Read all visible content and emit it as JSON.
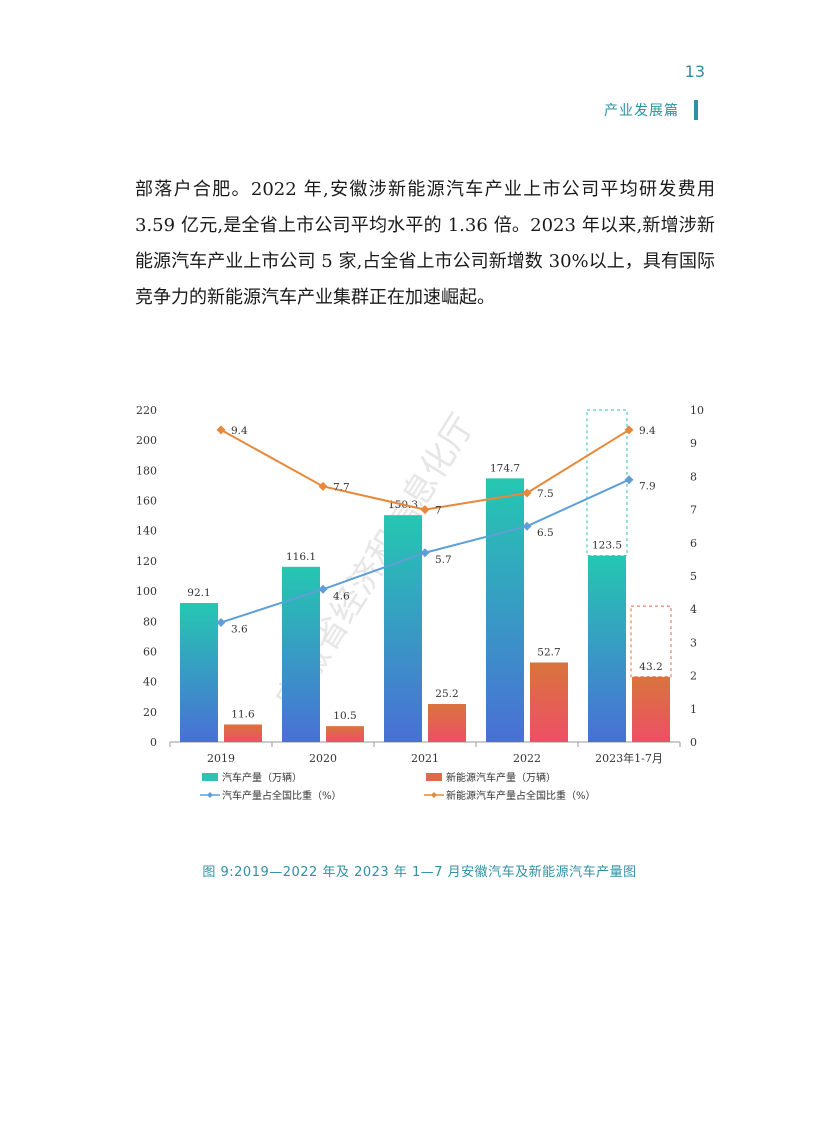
{
  "header": {
    "page_number": "13",
    "section": "产业发展篇"
  },
  "body_text": "部落户合肥。2022 年,安徽涉新能源汽车产业上市公司平均研发费用 3.59 亿元,是全省上市公司平均水平的 1.36 倍。2023 年以来,新增涉新能源汽车产业上市公司 5 家,占全省上市公司新增数 30%以上，具有国际竞争力的新能源汽车产业集群正在加速崛起。",
  "watermark": "安徽省经济和信息化厅",
  "caption": "图 9:2019—2022 年及 2023 年 1—7 月安徽汽车及新能源汽车产量图",
  "chart_data": {
    "type": "bar",
    "categories": [
      "2019",
      "2020",
      "2021",
      "2022",
      "2023年1-7月"
    ],
    "series": [
      {
        "name": "汽车产量（万辆）",
        "type": "bar",
        "axis": "left",
        "color": "#2ec2b3",
        "values": [
          92.1,
          116.1,
          150.3,
          174.7,
          123.5
        ],
        "labels": [
          "92.1",
          "116.1",
          "150.3",
          "174.7",
          "123.5"
        ]
      },
      {
        "name": "新能源汽车产量（万辆）",
        "type": "bar",
        "axis": "left",
        "color": "#e2674f",
        "values": [
          11.6,
          10.5,
          25.2,
          52.7,
          43.2
        ],
        "labels": [
          "11.6",
          "10.5",
          "25.2",
          "52.7",
          "43.2"
        ]
      },
      {
        "name": "汽车产量占全国比重（%）",
        "type": "line",
        "axis": "right",
        "color": "#5f9fd8",
        "values": [
          3.6,
          4.6,
          5.7,
          6.5,
          7.9
        ],
        "labels": [
          "3.6",
          "4.6",
          "5.7",
          "6.5",
          "7.9"
        ]
      },
      {
        "name": "新能源汽车产量占全国比重（%）",
        "type": "line",
        "axis": "right",
        "color": "#e8883a",
        "values": [
          9.4,
          7.7,
          7,
          7.5,
          9.4
        ],
        "labels": [
          "9.4",
          "7.7",
          "7",
          "7.5",
          "9.4"
        ]
      }
    ],
    "y_left": {
      "min": 0,
      "max": 220,
      "ticks": [
        "0",
        "20",
        "40",
        "60",
        "80",
        "100",
        "120",
        "140",
        "160",
        "180",
        "200",
        "220"
      ]
    },
    "y_right": {
      "min": 0,
      "max": 10,
      "ticks": [
        "0",
        "1",
        "2",
        "3",
        "4",
        "5",
        "6",
        "7",
        "8",
        "9",
        "10"
      ]
    },
    "highlight_note": "2023年1-7月 bars shown with dashed outline boxes",
    "legend_position": "bottom"
  }
}
